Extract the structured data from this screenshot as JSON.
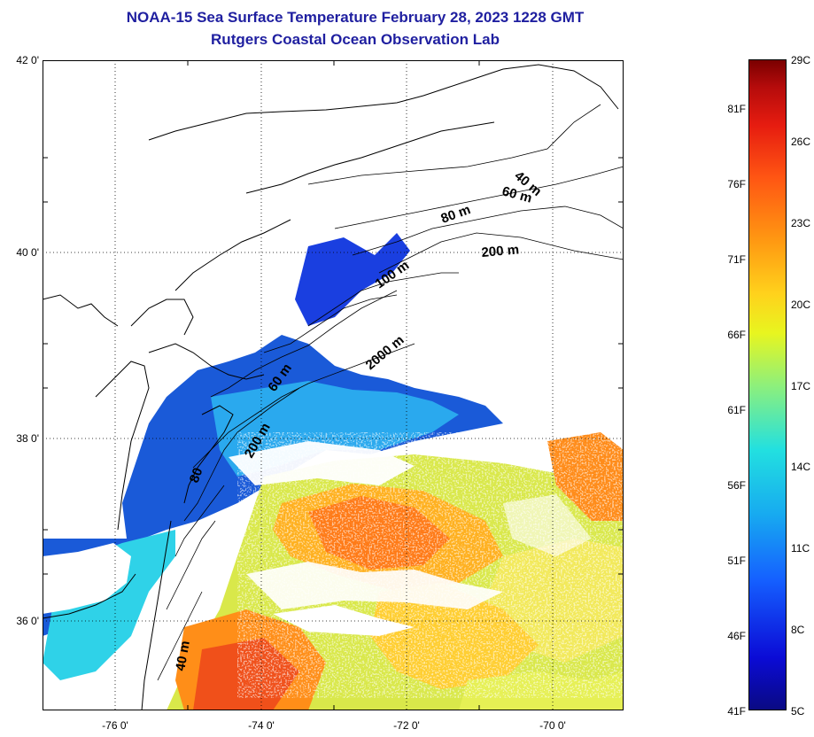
{
  "title": {
    "line1": "NOAA-15 Sea Surface Temperature February 28, 2023 1228 GMT",
    "line2": "Rutgers Coastal Ocean Observation Lab"
  },
  "map": {
    "lat_ticks": [
      "42 0'",
      "40 0'",
      "38 0'",
      "36 0'"
    ],
    "lon_ticks": [
      "-76 0'",
      "-74 0'",
      "-72 0'",
      "-70 0'"
    ],
    "isobath_labels": [
      "40 m",
      "60 m",
      "80 m",
      "200 m",
      "100 m",
      "2000 m",
      "60 m",
      "200 m",
      "80",
      "40 m"
    ]
  },
  "colorbar": {
    "celsius": [
      "29C",
      "26C",
      "23C",
      "20C",
      "17C",
      "14C",
      "11C",
      "8C",
      "5C"
    ],
    "fahrenheit": [
      "81F",
      "76F",
      "71F",
      "66F",
      "61F",
      "56F",
      "51F",
      "46F",
      "41F"
    ],
    "colors": [
      "#7a0000",
      "#e61c10",
      "#ff5513",
      "#ff9a12",
      "#ffd21c",
      "#e8f51f",
      "#22e0e0",
      "#1560ff",
      "#0a0a83"
    ]
  }
}
